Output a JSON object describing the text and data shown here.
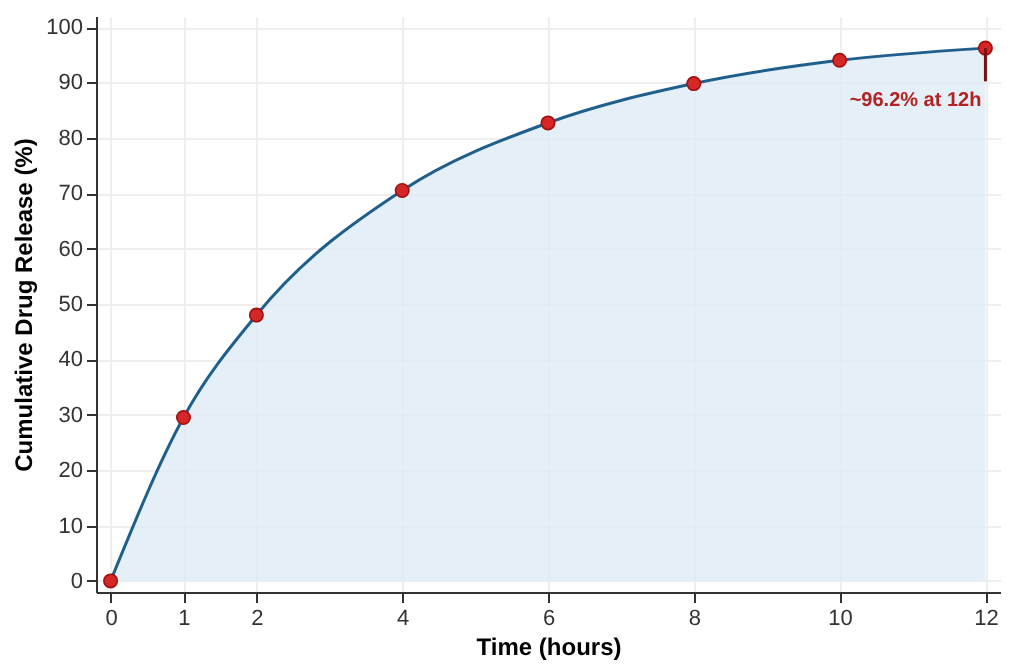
{
  "chart_data": {
    "type": "area",
    "xlabel": "Time (hours)",
    "ylabel": "Cumulative Drug Release (%)",
    "x": [
      0,
      1,
      2,
      4,
      6,
      8,
      10,
      12
    ],
    "series": [
      {
        "color": "#1f5f8b",
        "values": [
          0,
          29.5,
          48,
          70.5,
          82.7,
          89.8,
          94,
          96.2
        ]
      }
    ],
    "xlim": [
      -0.2,
      12.2
    ],
    "xticks": [
      0,
      1,
      2,
      4,
      6,
      8,
      10,
      12
    ],
    "ylim": [
      -2,
      102
    ],
    "yticks": [
      0,
      10,
      20,
      30,
      40,
      50,
      60,
      70,
      80,
      90,
      100
    ],
    "grid": true,
    "marker": "circle",
    "line_style": "solid",
    "annotations": [
      {
        "text": "~96.2% at 12h",
        "x": 12,
        "y": 96.2
      }
    ]
  }
}
